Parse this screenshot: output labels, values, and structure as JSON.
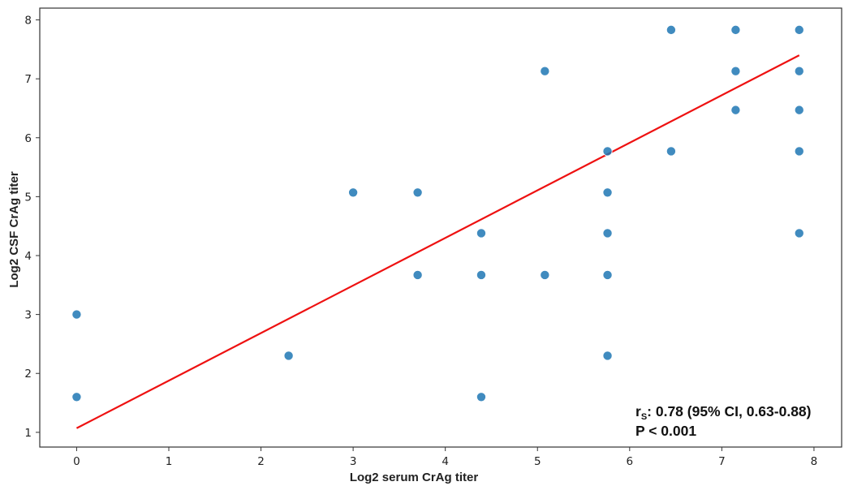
{
  "chart_data": {
    "type": "scatter",
    "xlabel": "Log2 serum CrAg titer",
    "ylabel": "Log2 CSF CrAg titer",
    "xlim": [
      -0.4,
      8.3
    ],
    "ylim": [
      0.75,
      8.2
    ],
    "x_ticks": [
      "0",
      "1",
      "2",
      "3",
      "4",
      "5",
      "6",
      "7",
      "8"
    ],
    "y_ticks": [
      "1",
      "2",
      "3",
      "4",
      "5",
      "6",
      "7",
      "8"
    ],
    "grid": false,
    "points": [
      {
        "x": 0,
        "y": 3.0
      },
      {
        "x": 0,
        "y": 1.6
      },
      {
        "x": 2.3,
        "y": 2.3
      },
      {
        "x": 3.0,
        "y": 5.07
      },
      {
        "x": 3.7,
        "y": 5.07
      },
      {
        "x": 3.7,
        "y": 3.67
      },
      {
        "x": 4.39,
        "y": 4.38
      },
      {
        "x": 4.39,
        "y": 3.67
      },
      {
        "x": 4.39,
        "y": 1.6
      },
      {
        "x": 5.08,
        "y": 7.13
      },
      {
        "x": 5.08,
        "y": 3.67
      },
      {
        "x": 5.76,
        "y": 5.77
      },
      {
        "x": 5.76,
        "y": 5.07
      },
      {
        "x": 5.76,
        "y": 4.38
      },
      {
        "x": 5.76,
        "y": 3.67
      },
      {
        "x": 5.76,
        "y": 2.3
      },
      {
        "x": 6.45,
        "y": 7.83
      },
      {
        "x": 6.45,
        "y": 5.77
      },
      {
        "x": 7.15,
        "y": 7.83
      },
      {
        "x": 7.15,
        "y": 7.13
      },
      {
        "x": 7.15,
        "y": 6.47
      },
      {
        "x": 7.84,
        "y": 7.83
      },
      {
        "x": 7.84,
        "y": 7.13
      },
      {
        "x": 7.84,
        "y": 6.47
      },
      {
        "x": 7.84,
        "y": 5.77
      },
      {
        "x": 7.84,
        "y": 4.38
      }
    ],
    "fit_line": {
      "x": [
        0,
        7.84
      ],
      "y": [
        1.07,
        7.4
      ],
      "color": "#ee1111"
    },
    "point_color": "#1f77b4",
    "annotation": {
      "r_symbol": "r",
      "r_subscript": "S",
      "r_text": ": 0.78 (95% CI, 0.63-0.88)",
      "p_text": "P < 0.001",
      "placement": "bottom-right"
    }
  }
}
